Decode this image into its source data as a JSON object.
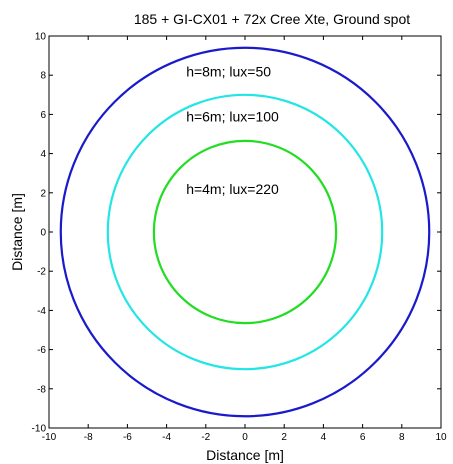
{
  "chart_data": {
    "type": "line",
    "title": "185 + GI-CX01 + 72x Cree Xte, Ground spot",
    "xlabel": "Distance [m]",
    "ylabel": "Distance [m]",
    "xlim": [
      -10,
      10
    ],
    "ylim": [
      -10,
      10
    ],
    "xticks": [
      -10,
      -8,
      -6,
      -4,
      -2,
      0,
      2,
      4,
      6,
      8,
      10
    ],
    "yticks": [
      -10,
      -8,
      -6,
      -4,
      -2,
      0,
      2,
      4,
      6,
      8,
      10
    ],
    "grid": false,
    "series": [
      {
        "radius": 9.4,
        "color": "#1a1acc",
        "label": "h=8m; lux=50",
        "label_pos": [
          -3.0,
          8.2
        ]
      },
      {
        "radius": 7.0,
        "color": "#22e5e5",
        "label": "h=6m; lux=100",
        "label_pos": [
          -3.0,
          5.9
        ]
      },
      {
        "radius": 4.65,
        "color": "#22dd22",
        "label": "h=4m; lux=220",
        "label_pos": [
          -3.0,
          2.2
        ]
      }
    ]
  }
}
